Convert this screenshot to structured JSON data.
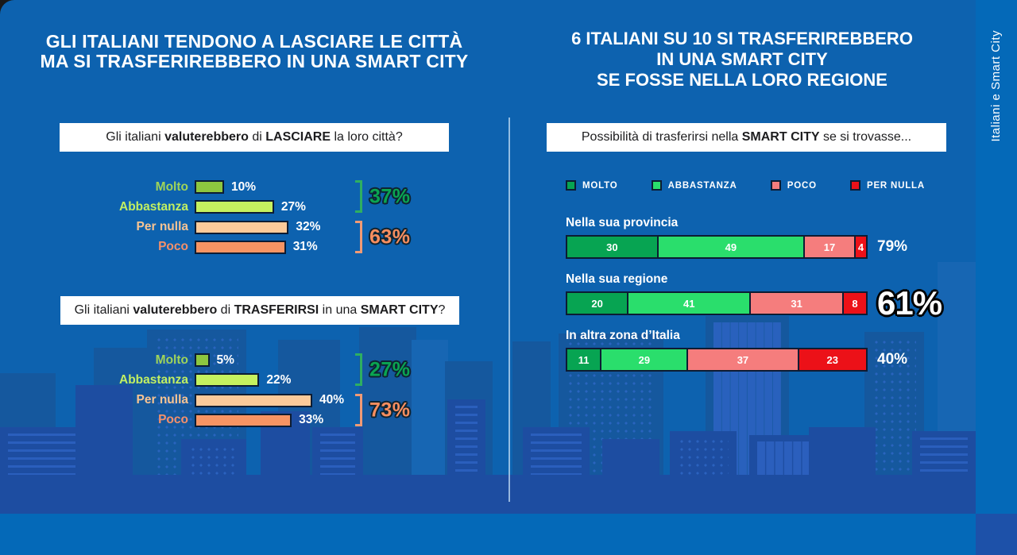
{
  "side_label": "Italiani e Smart City",
  "left_panel": {
    "title_lines": [
      "GLI ITALIANI TENDONO A LASCIARE LE CITTÀ",
      "MA SI TRASFERIREBBERO IN UNA SMART CITY"
    ],
    "charts": [
      {
        "question": [
          {
            "text": "Gli italiani ",
            "bold": false
          },
          {
            "text": "valuterebbero",
            "bold": true
          },
          {
            "text": " di ",
            "bold": false
          },
          {
            "text": "LASCIARE",
            "bold": true
          },
          {
            "text": " la loro città?",
            "bold": false
          }
        ],
        "rows": [
          {
            "label": "Molto",
            "value": 10,
            "value_label": "10%",
            "bar_color": "#8dc63f",
            "label_color": "#9fd45a"
          },
          {
            "label": "Abbastanza",
            "value": 27,
            "value_label": "27%",
            "bar_color": "#c5f15f",
            "label_color": "#c1ef62"
          },
          {
            "label": "Per nulla",
            "value": 32,
            "value_label": "32%",
            "bar_color": "#fbca9a",
            "label_color": "#f8c493"
          },
          {
            "label": "Poco",
            "value": 31,
            "value_label": "31%",
            "bar_color": "#f79463",
            "label_color": "#f4906a"
          }
        ],
        "groups": [
          {
            "label": "37%",
            "text_color": "#0aa551",
            "line_color": "#2eaf61"
          },
          {
            "label": "63%",
            "text_color": "#f78e5f",
            "line_color": "#f09a75"
          }
        ]
      },
      {
        "question": [
          {
            "text": "Gli italiani ",
            "bold": false
          },
          {
            "text": "valuterebbero",
            "bold": true
          },
          {
            "text": " di ",
            "bold": false
          },
          {
            "text": "TRASFERIRSI",
            "bold": true
          },
          {
            "text": " in una ",
            "bold": false
          },
          {
            "text": "SMART CITY",
            "bold": true
          },
          {
            "text": "?",
            "bold": false
          }
        ],
        "rows": [
          {
            "label": "Molto",
            "value": 5,
            "value_label": "5%",
            "bar_color": "#8dc63f",
            "label_color": "#9fd45a"
          },
          {
            "label": "Abbastanza",
            "value": 22,
            "value_label": "22%",
            "bar_color": "#c5f15f",
            "label_color": "#c1ef62"
          },
          {
            "label": "Per nulla",
            "value": 40,
            "value_label": "40%",
            "bar_color": "#fbca9a",
            "label_color": "#f8c493"
          },
          {
            "label": "Poco",
            "value": 33,
            "value_label": "33%",
            "bar_color": "#f79463",
            "label_color": "#f4906a"
          }
        ],
        "groups": [
          {
            "label": "27%",
            "text_color": "#0aa551",
            "line_color": "#2eaf61"
          },
          {
            "label": "73%",
            "text_color": "#f78e5f",
            "line_color": "#f09a75"
          }
        ]
      }
    ]
  },
  "right_panel": {
    "title_lines": [
      "6 ITALIANI SU 10 SI TRASFERIREBBERO",
      "IN UNA SMART CITY",
      "SE FOSSE NELLA LORO REGIONE"
    ],
    "question": [
      {
        "text": "Possibilità di trasferirsi nella ",
        "bold": false
      },
      {
        "text": "SMART CITY",
        "bold": true
      },
      {
        "text": " se si trovasse...",
        "bold": false
      }
    ],
    "legend": [
      {
        "label": "MOLTO",
        "color": "#07a452"
      },
      {
        "label": "ABBASTANZA",
        "color": "#2ade6c"
      },
      {
        "label": "POCO",
        "color": "#f57d7d"
      },
      {
        "label": "PER NULLA",
        "color": "#ec1118"
      }
    ],
    "bars": [
      {
        "label": "Nella sua provincia",
        "segments": [
          30,
          49,
          17,
          4
        ],
        "total": "79%",
        "big_total": false
      },
      {
        "label": "Nella sua regione",
        "segments": [
          20,
          41,
          31,
          8
        ],
        "total": "61%",
        "big_total": true
      },
      {
        "label": "In altra zona d’Italia",
        "segments": [
          11,
          29,
          37,
          23
        ],
        "total": "40%",
        "big_total": false
      }
    ]
  },
  "chart_data": [
    {
      "type": "bar",
      "orientation": "horizontal",
      "title": "Gli italiani valuterebbero di LASCIARE la loro città?",
      "categories": [
        "Molto",
        "Abbastanza",
        "Per nulla",
        "Poco"
      ],
      "values": [
        10,
        27,
        32,
        31
      ],
      "unit": "%",
      "group_totals": [
        {
          "categories": [
            "Molto",
            "Abbastanza"
          ],
          "value": 37
        },
        {
          "categories": [
            "Per nulla",
            "Poco"
          ],
          "value": 63
        }
      ]
    },
    {
      "type": "bar",
      "orientation": "horizontal",
      "title": "Gli italiani valuterebbero di TRASFERIRSI in una SMART CITY?",
      "categories": [
        "Molto",
        "Abbastanza",
        "Per nulla",
        "Poco"
      ],
      "values": [
        5,
        22,
        40,
        33
      ],
      "unit": "%",
      "group_totals": [
        {
          "categories": [
            "Molto",
            "Abbastanza"
          ],
          "value": 27
        },
        {
          "categories": [
            "Per nulla",
            "Poco"
          ],
          "value": 73
        }
      ]
    },
    {
      "type": "bar",
      "subtype": "stacked-horizontal",
      "title": "Possibilità di trasferirsi nella SMART CITY se si trovasse...",
      "categories": [
        "Nella sua provincia",
        "Nella sua regione",
        "In altra zona d’Italia"
      ],
      "series": [
        {
          "name": "MOLTO",
          "values": [
            30,
            20,
            11
          ]
        },
        {
          "name": "ABBASTANZA",
          "values": [
            49,
            41,
            29
          ]
        },
        {
          "name": "POCO",
          "values": [
            17,
            31,
            37
          ]
        },
        {
          "name": "PER NULLA",
          "values": [
            4,
            8,
            23
          ]
        }
      ],
      "totals": [
        "79%",
        "61%",
        "40%"
      ],
      "unit": "%",
      "legend_position": "top"
    }
  ]
}
